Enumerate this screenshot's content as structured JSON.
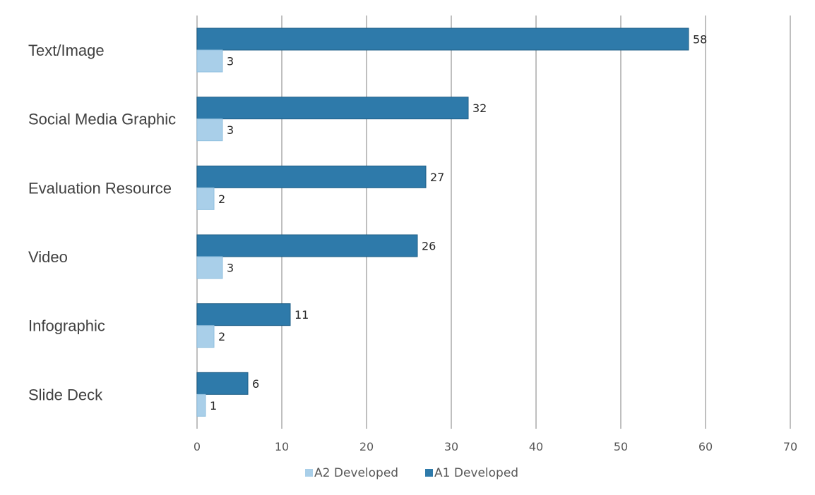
{
  "chart_data": {
    "type": "bar",
    "orientation": "horizontal",
    "categories": [
      "Text/Image",
      "Social Media Graphic",
      "Evaluation Resource",
      "Video",
      "Infographic",
      "Slide Deck"
    ],
    "series": [
      {
        "name": "A1 Developed",
        "color": "#2e7aaa",
        "values": [
          58,
          32,
          27,
          26,
          11,
          6
        ]
      },
      {
        "name": "A2 Developed",
        "color": "#a9cfe9",
        "values": [
          3,
          3,
          2,
          3,
          2,
          1
        ]
      }
    ],
    "legend_order": [
      "A2 Developed",
      "A1 Developed"
    ],
    "legend_position": "bottom",
    "xlim": [
      0,
      70
    ],
    "x_ticks": [
      0,
      10,
      20,
      30,
      40,
      50,
      60,
      70
    ],
    "grid": true,
    "data_labels": true,
    "title": "",
    "xlabel": "",
    "ylabel": ""
  }
}
